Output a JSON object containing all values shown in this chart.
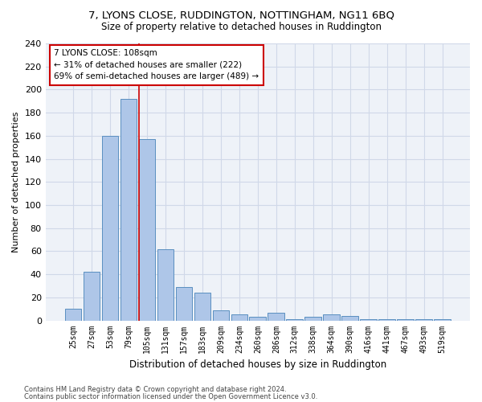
{
  "title_line1": "7, LYONS CLOSE, RUDDINGTON, NOTTINGHAM, NG11 6BQ",
  "title_line2": "Size of property relative to detached houses in Ruddington",
  "xlabel": "Distribution of detached houses by size in Ruddington",
  "ylabel": "Number of detached properties",
  "categories": [
    "25sqm",
    "27sqm",
    "53sqm",
    "79sqm",
    "105sqm",
    "131sqm",
    "157sqm",
    "183sqm",
    "209sqm",
    "234sqm",
    "260sqm",
    "286sqm",
    "312sqm",
    "338sqm",
    "364sqm",
    "390sqm",
    "416sqm",
    "441sqm",
    "467sqm",
    "493sqm",
    "519sqm"
  ],
  "values": [
    10,
    42,
    160,
    192,
    157,
    62,
    29,
    24,
    9,
    5,
    3,
    7,
    1,
    3,
    5,
    4,
    1,
    1,
    1,
    1,
    1
  ],
  "bar_color": "#aec6e8",
  "bar_edge_color": "#5a8fc0",
  "vline_idx": 4,
  "vline_color": "#cc0000",
  "annotation_text": "7 LYONS CLOSE: 108sqm\n← 31% of detached houses are smaller (222)\n69% of semi-detached houses are larger (489) →",
  "annotation_box_color": "#ffffff",
  "annotation_box_edge": "#cc0000",
  "ylim": [
    0,
    240
  ],
  "yticks": [
    0,
    20,
    40,
    60,
    80,
    100,
    120,
    140,
    160,
    180,
    200,
    220,
    240
  ],
  "grid_color": "#d0d8e8",
  "bg_color": "#eef2f8",
  "footer_line1": "Contains HM Land Registry data © Crown copyright and database right 2024.",
  "footer_line2": "Contains public sector information licensed under the Open Government Licence v3.0."
}
